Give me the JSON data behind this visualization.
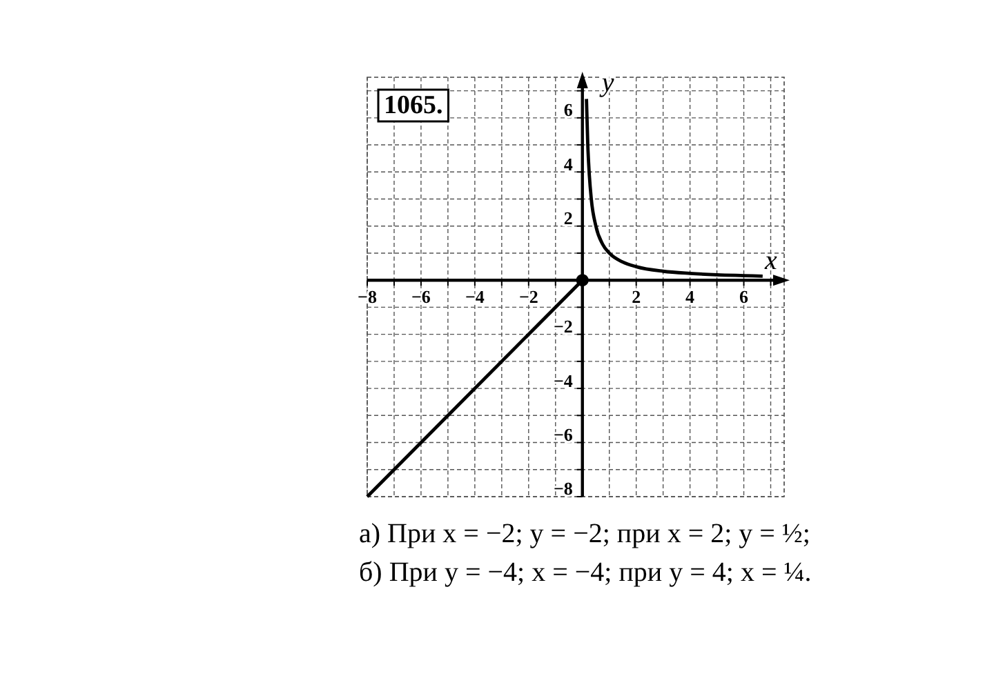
{
  "chart_data": {
    "type": "line",
    "title": "1065.",
    "xlabel": "x",
    "ylabel": "y",
    "xlim": [
      -8,
      7.5
    ],
    "ylim": [
      -8,
      7.5
    ],
    "xticks": [
      -8,
      {
        "value": -7,
        "label": null
      },
      -6,
      {
        "value": -5,
        "label": null
      },
      -4,
      {
        "value": -3,
        "label": null
      },
      -2,
      {
        "value": -1,
        "label": null
      },
      {
        "value": 1,
        "label": null
      },
      2,
      {
        "value": 3,
        "label": null
      },
      4,
      {
        "value": 5,
        "label": null
      },
      6,
      {
        "value": 7,
        "label": null
      }
    ],
    "yticks": [
      -8,
      {
        "value": -7,
        "label": null
      },
      -6,
      {
        "value": -5,
        "label": null
      },
      -4,
      {
        "value": -3,
        "label": null
      },
      -2,
      {
        "value": -1,
        "label": null
      },
      {
        "value": 1,
        "label": null
      },
      2,
      {
        "value": 3,
        "label": null
      },
      4,
      {
        "value": 5,
        "label": null
      },
      6,
      {
        "value": 7,
        "label": null
      }
    ],
    "grid": true,
    "series": [
      {
        "color": "#000000",
        "x": [
          -8,
          0
        ],
        "values": [
          -8,
          0
        ]
      },
      {
        "color": "#000000",
        "x": [
          0.15,
          0.2,
          0.25,
          0.33,
          0.5,
          0.75,
          1,
          1.5,
          2,
          3,
          4,
          5,
          6,
          6.7
        ],
        "values": [
          6.7,
          5,
          4,
          3,
          2,
          1.33,
          1,
          0.67,
          0.5,
          0.33,
          0.25,
          0.2,
          0.17,
          0.15
        ]
      },
      {
        "type": "scatter",
        "color": "#000000",
        "marker": "circle",
        "x": [
          0
        ],
        "values": [
          0
        ]
      }
    ],
    "annotations": [
      "а) При x = −2; y = −2; при x = 2; y = ½;",
      "б) При y = −4; x = −4; при y = 4; x = ¼."
    ]
  }
}
